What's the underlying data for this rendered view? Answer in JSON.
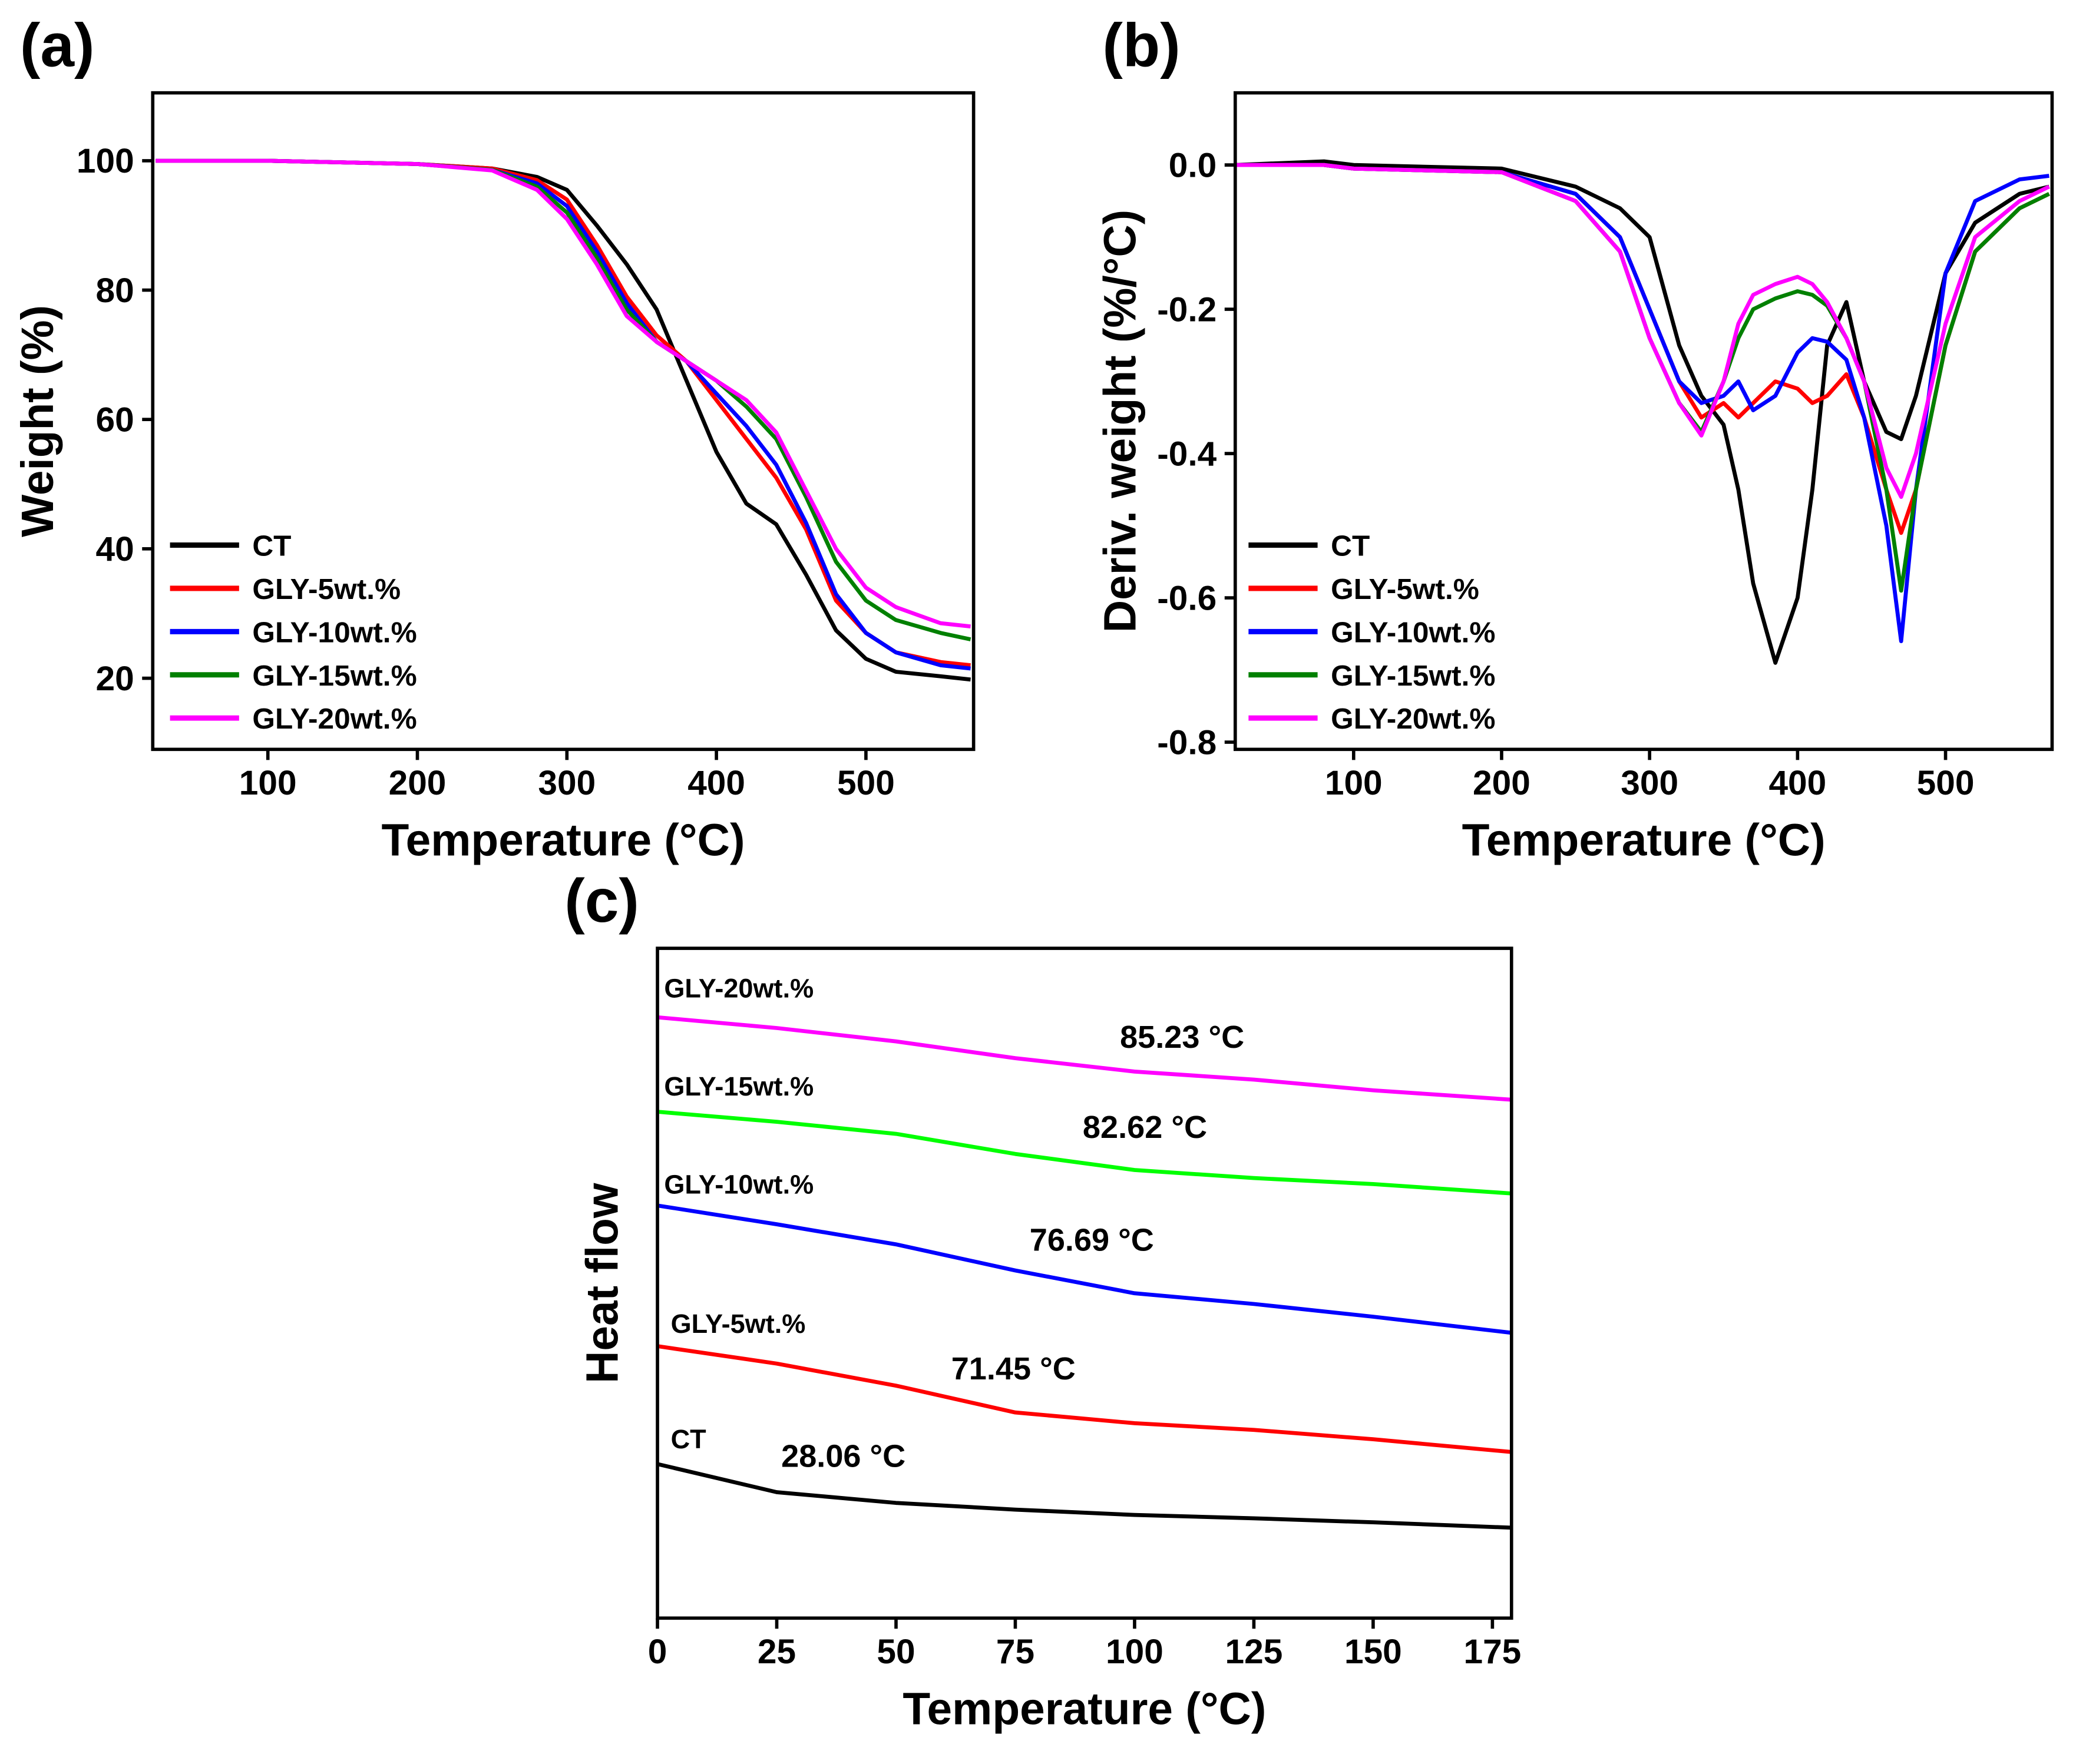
{
  "chart_data": [
    {
      "type": "line",
      "panel": "(a)",
      "xlabel": "Temperature (°C)",
      "ylabel": "Weight (%)",
      "xlim": [
        23,
        572
      ],
      "ylim": [
        9,
        110.5
      ],
      "xticks": [
        100,
        200,
        300,
        400,
        500
      ],
      "yticks": [
        20,
        40,
        60,
        80,
        100
      ],
      "x": [
        25,
        100,
        200,
        250,
        280,
        300,
        320,
        340,
        360,
        380,
        400,
        420,
        440,
        460,
        480,
        500,
        520,
        550,
        570
      ],
      "series": [
        {
          "name": "CT",
          "color": "#000000",
          "values": [
            100,
            100,
            99.5,
            98.8,
            97.5,
            95.5,
            90,
            84,
            77,
            66,
            55,
            47,
            43.8,
            36,
            27.4,
            23,
            21,
            20.3,
            19.8
          ]
        },
        {
          "name": "GLY-5wt.%",
          "color": "#ff0000",
          "values": [
            100,
            100,
            99.5,
            98.8,
            97,
            94,
            87,
            79,
            73,
            69,
            63,
            57,
            51,
            43,
            32,
            27,
            24,
            22.5,
            22
          ]
        },
        {
          "name": "GLY-10wt.%",
          "color": "#0000ff",
          "values": [
            100,
            100,
            99.5,
            98.6,
            96.5,
            93,
            86,
            78,
            72,
            69,
            64,
            59,
            53,
            44,
            33,
            27,
            24,
            22,
            21.5
          ]
        },
        {
          "name": "GLY-15wt.%",
          "color": "#008000",
          "values": [
            100,
            100,
            99.5,
            98.6,
            96,
            92,
            85,
            77,
            72,
            69,
            66,
            62,
            57,
            48,
            38,
            32,
            29,
            27,
            26
          ]
        },
        {
          "name": "GLY-20wt.%",
          "color": "#ff00ff",
          "values": [
            100,
            100,
            99.5,
            98.5,
            95.5,
            91,
            84,
            76,
            72,
            69,
            66,
            63,
            58,
            49,
            40,
            34,
            31,
            28.5,
            28
          ]
        }
      ]
    },
    {
      "type": "line",
      "panel": "(b)",
      "xlabel": "Temperature (°C)",
      "ylabel": "Deriv. weight (%/°C)",
      "xlim": [
        20,
        572
      ],
      "ylim": [
        -0.81,
        0.1
      ],
      "xticks": [
        100,
        200,
        300,
        400,
        500
      ],
      "yticks": [
        {
          "value": -0.8,
          "label": "-0.8"
        },
        {
          "value": -0.6,
          "label": "-0.6"
        },
        {
          "value": -0.4,
          "label": "-0.4"
        },
        {
          "value": -0.2,
          "label": "-0.2"
        },
        {
          "value": 0,
          "label": "0.0"
        }
      ],
      "x": [
        20,
        80,
        100,
        200,
        250,
        280,
        300,
        320,
        335,
        350,
        360,
        370,
        385,
        400,
        410,
        420,
        433,
        445,
        460,
        470,
        480,
        500,
        520,
        550,
        570
      ],
      "series": [
        {
          "name": "CT",
          "color": "#000000",
          "values": [
            0,
            0.005,
            0,
            -0.005,
            -0.03,
            -0.06,
            -0.1,
            -0.25,
            -0.32,
            -0.36,
            -0.45,
            -0.58,
            -0.69,
            -0.6,
            -0.45,
            -0.25,
            -0.19,
            -0.3,
            -0.37,
            -0.38,
            -0.32,
            -0.15,
            -0.08,
            -0.04,
            -0.03
          ]
        },
        {
          "name": "GLY-5wt.%",
          "color": "#ff0000",
          "values": [
            0,
            0,
            -0.005,
            -0.01,
            -0.04,
            -0.1,
            -0.2,
            -0.3,
            -0.35,
            -0.33,
            -0.35,
            -0.33,
            -0.3,
            -0.31,
            -0.33,
            -0.32,
            -0.29,
            -0.35,
            -0.45,
            -0.51,
            -0.45,
            -0.25,
            -0.12,
            -0.06,
            -0.04
          ]
        },
        {
          "name": "GLY-10wt.%",
          "color": "#0000ff",
          "values": [
            0,
            0,
            -0.005,
            -0.01,
            -0.04,
            -0.1,
            -0.2,
            -0.3,
            -0.33,
            -0.32,
            -0.3,
            -0.34,
            -0.32,
            -0.26,
            -0.24,
            -0.245,
            -0.27,
            -0.35,
            -0.5,
            -0.66,
            -0.45,
            -0.15,
            -0.05,
            -0.02,
            -0.015
          ]
        },
        {
          "name": "GLY-15wt.%",
          "color": "#008000",
          "values": [
            0,
            0,
            -0.005,
            -0.01,
            -0.05,
            -0.12,
            -0.24,
            -0.33,
            -0.37,
            -0.3,
            -0.24,
            -0.2,
            -0.185,
            -0.175,
            -0.18,
            -0.195,
            -0.24,
            -0.3,
            -0.45,
            -0.59,
            -0.45,
            -0.25,
            -0.12,
            -0.06,
            -0.04
          ]
        },
        {
          "name": "GLY-20wt.%",
          "color": "#ff00ff",
          "values": [
            0,
            0,
            -0.005,
            -0.01,
            -0.05,
            -0.12,
            -0.24,
            -0.33,
            -0.375,
            -0.3,
            -0.22,
            -0.18,
            -0.165,
            -0.155,
            -0.165,
            -0.19,
            -0.24,
            -0.3,
            -0.42,
            -0.46,
            -0.4,
            -0.22,
            -0.1,
            -0.05,
            -0.03
          ]
        }
      ]
    },
    {
      "type": "line",
      "panel": "(c)",
      "xlabel": "Temperature (°C)",
      "ylabel": "Heat flow",
      "xlim": [
        0,
        179
      ],
      "ylim": [
        0,
        100
      ],
      "xticks": [
        0,
        25,
        50,
        75,
        100,
        125,
        150,
        175
      ],
      "x": [
        0,
        25,
        50,
        75,
        100,
        125,
        150,
        179
      ],
      "series": [
        {
          "name": "CT",
          "color": "#000000",
          "values": [
            23.0,
            18.8,
            17.2,
            16.2,
            15.4,
            14.9,
            14.3,
            13.5
          ]
        },
        {
          "name": "GLY-5wt.%",
          "color": "#ff0000",
          "values": [
            40.6,
            38.0,
            34.7,
            30.7,
            29.1,
            28.1,
            26.7,
            24.8
          ]
        },
        {
          "name": "GLY-10wt.%",
          "color": "#0000ff",
          "values": [
            61.6,
            58.8,
            55.8,
            51.9,
            48.5,
            46.9,
            45.0,
            42.6
          ]
        },
        {
          "name": "GLY-15wt.%",
          "color": "#00ff00",
          "values": [
            75.6,
            74.1,
            72.3,
            69.3,
            66.9,
            65.7,
            64.8,
            63.4
          ]
        },
        {
          "name": "GLY-20wt.%",
          "color": "#ff00ff",
          "values": [
            89.7,
            88.1,
            86.1,
            83.6,
            81.6,
            80.4,
            78.8,
            77.4
          ]
        }
      ],
      "annotations": [
        "28.06 °C",
        "71.45 °C",
        "76.69 °C",
        "82.62 °C",
        "85.23 °C"
      ]
    }
  ]
}
